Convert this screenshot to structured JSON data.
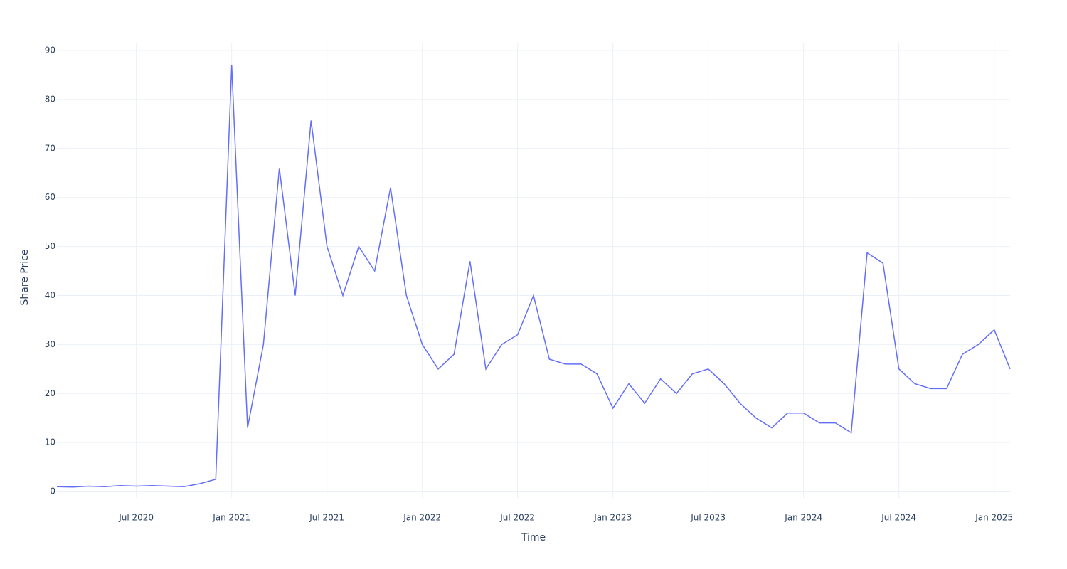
{
  "chart_data": {
    "type": "line",
    "xlabel": "Time",
    "ylabel": "Share Price",
    "color": "#636efa",
    "grid": true,
    "zeroline": true,
    "x": [
      "2020-02",
      "2020-03",
      "2020-04",
      "2020-05",
      "2020-06",
      "2020-07",
      "2020-08",
      "2020-09",
      "2020-10",
      "2020-11",
      "2020-12",
      "2021-01",
      "2021-02",
      "2021-03",
      "2021-04",
      "2021-05",
      "2021-06",
      "2021-07",
      "2021-08",
      "2021-09",
      "2021-10",
      "2021-11",
      "2021-12",
      "2022-01",
      "2022-02",
      "2022-03",
      "2022-04",
      "2022-05",
      "2022-06",
      "2022-07",
      "2022-08",
      "2022-09",
      "2022-10",
      "2022-11",
      "2022-12",
      "2023-01",
      "2023-02",
      "2023-03",
      "2023-04",
      "2023-05",
      "2023-06",
      "2023-07",
      "2023-08",
      "2023-09",
      "2023-10",
      "2023-11",
      "2023-12",
      "2024-01",
      "2024-02",
      "2024-03",
      "2024-04",
      "2024-05",
      "2024-06",
      "2024-07",
      "2024-08",
      "2024-09",
      "2024-10",
      "2024-11",
      "2024-12",
      "2025-01",
      "2025-02"
    ],
    "values": [
      1.0,
      0.9,
      1.1,
      1.0,
      1.2,
      1.1,
      1.2,
      1.1,
      1.0,
      1.6,
      2.5,
      87,
      13,
      30,
      66,
      40,
      75.7,
      50,
      40,
      50,
      45,
      62,
      40,
      30,
      25,
      28,
      47,
      25,
      30,
      32,
      40,
      27,
      26,
      26,
      24,
      17,
      22,
      18,
      23,
      20,
      24,
      25,
      22,
      18,
      15,
      13,
      16,
      16,
      14,
      14,
      12,
      48.7,
      46.6,
      25,
      22,
      21,
      21,
      28,
      30,
      33,
      25
    ],
    "xlim": [
      "2020-02",
      "2025-02"
    ],
    "xticks": [
      {
        "value": "2020-07",
        "label": "Jul 2020"
      },
      {
        "value": "2021-01",
        "label": "Jan 2021"
      },
      {
        "value": "2021-07",
        "label": "Jul 2021"
      },
      {
        "value": "2022-01",
        "label": "Jan 2022"
      },
      {
        "value": "2022-07",
        "label": "Jul 2022"
      },
      {
        "value": "2023-01",
        "label": "Jan 2023"
      },
      {
        "value": "2023-07",
        "label": "Jul 2023"
      },
      {
        "value": "2024-01",
        "label": "Jan 2024"
      },
      {
        "value": "2024-07",
        "label": "Jul 2024"
      },
      {
        "value": "2025-01",
        "label": "Jan 2025"
      }
    ],
    "ylim": [
      -1.3,
      91.6
    ],
    "yticks": [
      0,
      10,
      20,
      30,
      40,
      50,
      60,
      70,
      80,
      90
    ]
  }
}
